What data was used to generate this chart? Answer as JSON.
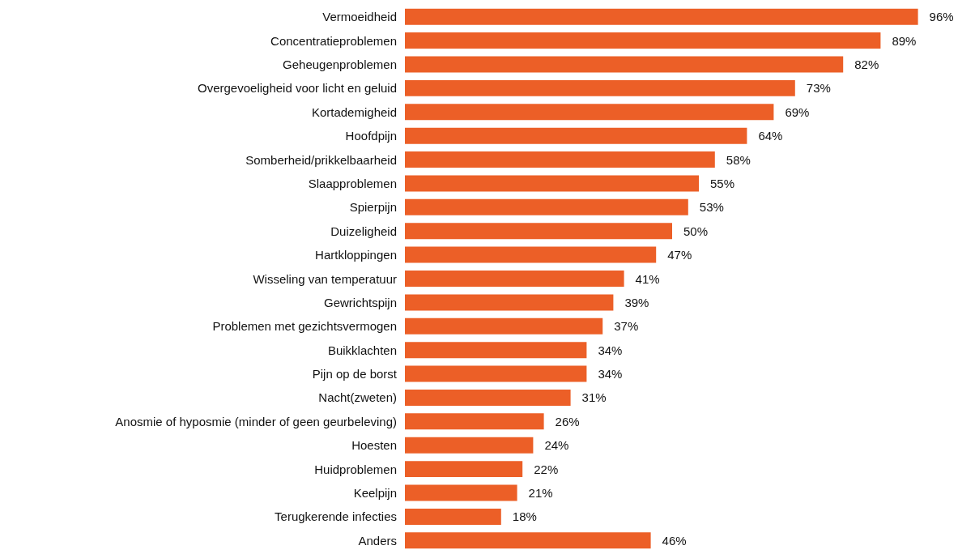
{
  "chart_data": {
    "type": "bar",
    "orientation": "horizontal",
    "categories": [
      "Vermoeidheid",
      "Concentratieproblemen",
      "Geheugenproblemen",
      "Overgevoeligheid voor licht en geluid",
      "Kortademigheid",
      "Hoofdpijn",
      "Somberheid/prikkelbaarheid",
      "Slaapproblemen",
      "Spierpijn",
      "Duizeligheid",
      "Hartkloppingen",
      "Wisseling van temperatuur",
      "Gewrichtspijn",
      "Problemen met gezichtsvermogen",
      "Buikklachten",
      "Pijn op de borst",
      "Nacht(zweten)",
      "Anosmie of hyposmie (minder of geen geurbeleving)",
      "Hoesten",
      "Huidproblemen",
      "Keelpijn",
      "Terugkerende infecties",
      "Anders"
    ],
    "values": [
      96,
      89,
      82,
      73,
      69,
      64,
      58,
      55,
      53,
      50,
      47,
      41,
      39,
      37,
      34,
      34,
      31,
      26,
      24,
      22,
      21,
      18,
      46
    ],
    "value_labels": [
      "96%",
      "89%",
      "82%",
      "73%",
      "69%",
      "64%",
      "58%",
      "55%",
      "53%",
      "50%",
      "47%",
      "41%",
      "39%",
      "37%",
      "34%",
      "34%",
      "31%",
      "26%",
      "24%",
      "22%",
      "21%",
      "18%",
      "46%"
    ],
    "color": "#ec5f27"
  }
}
